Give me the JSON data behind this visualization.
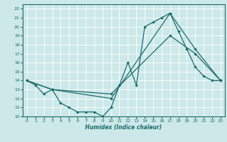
{
  "xlabel": "Humidex (Indice chaleur)",
  "bg_color": "#cce8e8",
  "line_color": "#1a6b6b",
  "grid_color": "#ffffff",
  "xlim": [
    -0.5,
    23.5
  ],
  "ylim": [
    10,
    22.5
  ],
  "xticks": [
    0,
    1,
    2,
    3,
    4,
    5,
    6,
    7,
    8,
    9,
    10,
    11,
    12,
    13,
    14,
    15,
    16,
    17,
    18,
    19,
    20,
    21,
    22,
    23
  ],
  "yticks": [
    10,
    11,
    12,
    13,
    14,
    15,
    16,
    17,
    18,
    19,
    20,
    21,
    22
  ],
  "line1": {
    "x": [
      0,
      1,
      2,
      3,
      4,
      5,
      6,
      7,
      8,
      9,
      10,
      11,
      12,
      13,
      14,
      15,
      16,
      17,
      18,
      19,
      20,
      21,
      22,
      23
    ],
    "y": [
      14,
      13.5,
      12.5,
      13,
      11.5,
      11,
      10.5,
      10.5,
      10.5,
      10,
      11,
      13.5,
      16,
      13.5,
      20,
      20.5,
      21,
      21.5,
      19.5,
      17.5,
      15.5,
      14.5,
      14,
      14
    ]
  },
  "line2": {
    "x": [
      0,
      3,
      10,
      17,
      20,
      23
    ],
    "y": [
      14,
      13,
      12,
      21.5,
      17.5,
      14
    ]
  },
  "line3": {
    "x": [
      0,
      3,
      10,
      17,
      20,
      23
    ],
    "y": [
      14,
      13,
      12.5,
      19,
      17,
      14
    ]
  }
}
